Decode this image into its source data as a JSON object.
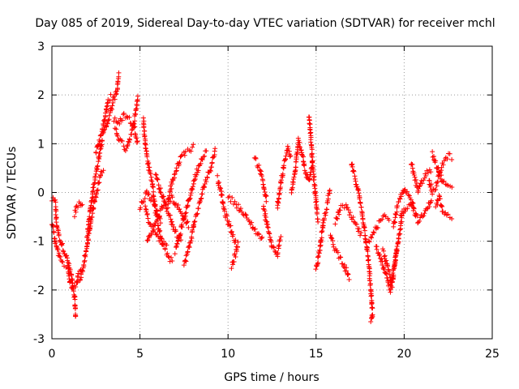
{
  "chart_data": {
    "type": "scatter",
    "title": "Day 085 of 2019, Sidereal Day-to-day VTEC variation (SDTVAR) for receiver mchl",
    "xlabel": "GPS time / hours",
    "ylabel": "SDTVAR / TECUs",
    "xlim": [
      0,
      25
    ],
    "ylim": [
      -3,
      3
    ],
    "x_ticks": [
      0,
      5,
      10,
      15,
      20,
      25
    ],
    "y_ticks": [
      -3,
      -2,
      -1,
      0,
      1,
      2,
      3
    ],
    "grid": true,
    "marker": "+",
    "series": [
      {
        "name": "SDTVAR",
        "color": "#ff0000",
        "tracks": [
          [
            [
              0.0,
              -0.15
            ],
            [
              0.2,
              -0.2
            ],
            [
              0.25,
              -0.6
            ],
            [
              0.4,
              -0.9
            ],
            [
              0.6,
              -1.1
            ],
            [
              0.9,
              -1.4
            ],
            [
              1.1,
              -1.7
            ],
            [
              1.3,
              -2.2
            ],
            [
              1.35,
              -2.6
            ]
          ],
          [
            [
              0.0,
              -0.6
            ],
            [
              0.2,
              -1.0
            ],
            [
              0.4,
              -1.3
            ],
            [
              0.6,
              -1.45
            ],
            [
              0.9,
              -1.5
            ],
            [
              1.0,
              -1.8
            ],
            [
              1.2,
              -2.0
            ],
            [
              1.4,
              -1.9
            ],
            [
              1.5,
              -1.7
            ],
            [
              1.7,
              -1.6
            ]
          ],
          [
            [
              1.3,
              -0.45
            ],
            [
              1.4,
              -0.3
            ],
            [
              1.6,
              -0.2
            ],
            [
              1.8,
              -0.25
            ]
          ],
          [
            [
              1.6,
              -1.8
            ],
            [
              1.8,
              -1.5
            ],
            [
              2.0,
              -1.1
            ],
            [
              2.2,
              -0.6
            ],
            [
              2.4,
              -0.2
            ],
            [
              2.6,
              0.1
            ],
            [
              2.8,
              0.4
            ],
            [
              3.0,
              0.5
            ]
          ],
          [
            [
              2.0,
              -0.9
            ],
            [
              2.2,
              -0.3
            ],
            [
              2.4,
              0.2
            ],
            [
              2.6,
              0.6
            ],
            [
              2.8,
              1.0
            ],
            [
              3.0,
              1.3
            ],
            [
              3.3,
              1.6
            ],
            [
              3.5,
              1.9
            ],
            [
              3.7,
              2.1
            ],
            [
              3.8,
              2.45
            ]
          ],
          [
            [
              2.5,
              0.8
            ],
            [
              2.8,
              1.2
            ],
            [
              3.0,
              1.5
            ],
            [
              3.2,
              1.9
            ],
            [
              3.4,
              2.0
            ]
          ],
          [
            [
              3.6,
              1.3
            ],
            [
              3.8,
              1.1
            ],
            [
              4.0,
              1.0
            ],
            [
              4.2,
              0.9
            ],
            [
              4.5,
              1.2
            ],
            [
              4.7,
              1.5
            ],
            [
              4.9,
              2.0
            ]
          ],
          [
            [
              3.5,
              1.5
            ],
            [
              3.8,
              1.4
            ],
            [
              4.1,
              1.6
            ],
            [
              4.4,
              1.5
            ],
            [
              4.7,
              1.3
            ],
            [
              4.9,
              1.0
            ]
          ],
          [
            [
              5.2,
              1.5
            ],
            [
              5.3,
              1.0
            ],
            [
              5.5,
              0.5
            ],
            [
              5.7,
              0.2
            ],
            [
              5.9,
              -0.4
            ],
            [
              6.1,
              -0.8
            ],
            [
              6.3,
              -1.1
            ],
            [
              6.6,
              -1.3
            ],
            [
              6.9,
              -1.45
            ]
          ],
          [
            [
              5.3,
              -0.3
            ],
            [
              5.5,
              -0.6
            ],
            [
              5.8,
              -0.8
            ],
            [
              6.2,
              -1.0
            ],
            [
              6.6,
              -1.1
            ]
          ],
          [
            [
              5.4,
              -1.0
            ],
            [
              5.8,
              -0.7
            ],
            [
              6.3,
              -0.3
            ],
            [
              6.8,
              -0.1
            ],
            [
              7.3,
              -0.4
            ],
            [
              7.8,
              -0.7
            ]
          ],
          [
            [
              6.6,
              -0.2
            ],
            [
              6.8,
              0.2
            ],
            [
              7.0,
              0.4
            ],
            [
              7.3,
              0.7
            ],
            [
              7.6,
              0.85
            ],
            [
              7.9,
              0.9
            ],
            [
              8.1,
              0.95
            ]
          ],
          [
            [
              5.9,
              0.4
            ],
            [
              6.1,
              0.1
            ],
            [
              6.4,
              -0.2
            ],
            [
              6.7,
              -0.5
            ],
            [
              7.0,
              -0.8
            ],
            [
              7.4,
              -1.0
            ]
          ],
          [
            [
              7.0,
              -1.2
            ],
            [
              7.3,
              -0.8
            ],
            [
              7.6,
              -0.4
            ],
            [
              7.9,
              0.0
            ],
            [
              8.2,
              0.4
            ],
            [
              8.5,
              0.7
            ],
            [
              8.8,
              0.9
            ]
          ],
          [
            [
              7.5,
              -1.5
            ],
            [
              7.8,
              -1.1
            ],
            [
              8.1,
              -0.6
            ],
            [
              8.4,
              -0.2
            ],
            [
              8.7,
              0.2
            ],
            [
              9.0,
              0.5
            ],
            [
              9.3,
              0.9
            ]
          ],
          [
            [
              5.0,
              -0.3
            ],
            [
              5.4,
              0.0
            ],
            [
              5.8,
              -0.2
            ],
            [
              6.2,
              -0.6
            ]
          ],
          [
            [
              9.4,
              0.3
            ],
            [
              9.6,
              0.0
            ],
            [
              9.8,
              -0.4
            ],
            [
              10.0,
              -0.6
            ],
            [
              10.3,
              -0.9
            ],
            [
              10.5,
              -1.1
            ]
          ],
          [
            [
              10.0,
              -0.1
            ],
            [
              10.4,
              -0.2
            ],
            [
              10.8,
              -0.4
            ],
            [
              11.2,
              -0.6
            ],
            [
              11.6,
              -0.8
            ],
            [
              12.0,
              -1.0
            ]
          ],
          [
            [
              10.2,
              -1.5
            ],
            [
              10.4,
              -1.3
            ],
            [
              10.6,
              -1.0
            ]
          ],
          [
            [
              11.5,
              0.7
            ],
            [
              11.8,
              0.5
            ],
            [
              12.0,
              0.2
            ],
            [
              12.2,
              -0.2
            ]
          ],
          [
            [
              12.0,
              -0.3
            ],
            [
              12.3,
              -0.8
            ],
            [
              12.5,
              -1.1
            ],
            [
              12.8,
              -1.3
            ],
            [
              13.0,
              -0.9
            ]
          ],
          [
            [
              12.8,
              -0.3
            ],
            [
              13.0,
              0.2
            ],
            [
              13.2,
              0.6
            ],
            [
              13.4,
              0.9
            ],
            [
              13.6,
              0.7
            ]
          ],
          [
            [
              13.6,
              0.0
            ],
            [
              13.8,
              0.4
            ],
            [
              14.0,
              1.1
            ],
            [
              14.2,
              0.8
            ],
            [
              14.4,
              0.4
            ],
            [
              14.6,
              0.2
            ],
            [
              14.8,
              0.6
            ]
          ],
          [
            [
              14.6,
              1.6
            ],
            [
              14.7,
              1.1
            ],
            [
              14.8,
              0.6
            ],
            [
              14.9,
              0.2
            ],
            [
              15.0,
              -0.2
            ],
            [
              15.1,
              -0.6
            ]
          ],
          [
            [
              15.0,
              -1.6
            ],
            [
              15.2,
              -1.2
            ],
            [
              15.4,
              -0.6
            ],
            [
              15.6,
              -0.3
            ],
            [
              15.8,
              0.1
            ]
          ],
          [
            [
              15.8,
              -0.9
            ],
            [
              16.0,
              -1.1
            ],
            [
              16.3,
              -1.3
            ],
            [
              16.6,
              -1.5
            ],
            [
              16.9,
              -1.8
            ]
          ],
          [
            [
              16.1,
              -0.6
            ],
            [
              16.4,
              -0.3
            ],
            [
              16.7,
              -0.3
            ],
            [
              17.0,
              -0.5
            ],
            [
              17.3,
              -0.7
            ],
            [
              17.6,
              -0.9
            ]
          ],
          [
            [
              17.0,
              0.6
            ],
            [
              17.2,
              0.3
            ],
            [
              17.4,
              0.0
            ],
            [
              17.6,
              -0.4
            ],
            [
              17.8,
              -0.9
            ],
            [
              18.0,
              -1.5
            ],
            [
              18.1,
              -2.0
            ],
            [
              18.2,
              -2.5
            ],
            [
              18.1,
              -2.7
            ]
          ],
          [
            [
              18.0,
              -1.0
            ],
            [
              18.3,
              -0.8
            ],
            [
              18.6,
              -0.6
            ],
            [
              18.9,
              -0.5
            ],
            [
              19.2,
              -0.6
            ]
          ],
          [
            [
              18.4,
              -1.1
            ],
            [
              18.7,
              -1.4
            ],
            [
              19.0,
              -1.7
            ],
            [
              19.2,
              -2.0
            ],
            [
              19.4,
              -1.6
            ],
            [
              19.6,
              -1.1
            ]
          ],
          [
            [
              18.8,
              -1.2
            ],
            [
              19.1,
              -1.6
            ],
            [
              19.3,
              -1.9
            ],
            [
              19.5,
              -1.4
            ],
            [
              19.7,
              -0.9
            ],
            [
              19.9,
              -0.4
            ]
          ],
          [
            [
              19.4,
              -0.7
            ],
            [
              19.6,
              -0.3
            ],
            [
              19.8,
              -0.1
            ],
            [
              20.0,
              0.05
            ],
            [
              20.3,
              -0.1
            ],
            [
              20.6,
              -0.3
            ]
          ],
          [
            [
              19.8,
              -0.5
            ],
            [
              20.1,
              -0.3
            ],
            [
              20.4,
              -0.2
            ],
            [
              20.8,
              -0.6
            ],
            [
              21.2,
              -0.4
            ],
            [
              21.6,
              -0.1
            ]
          ],
          [
            [
              20.4,
              0.6
            ],
            [
              20.6,
              0.3
            ],
            [
              20.8,
              0.0
            ],
            [
              21.0,
              0.2
            ],
            [
              21.3,
              0.4
            ],
            [
              21.6,
              0.5
            ]
          ],
          [
            [
              21.4,
              0.3
            ],
            [
              21.6,
              0.0
            ],
            [
              21.8,
              0.1
            ],
            [
              22.0,
              0.4
            ],
            [
              22.2,
              0.6
            ],
            [
              22.5,
              0.75
            ],
            [
              22.8,
              0.72
            ]
          ],
          [
            [
              21.8,
              -0.3
            ],
            [
              22.0,
              -0.1
            ],
            [
              22.2,
              -0.4
            ],
            [
              22.5,
              -0.5
            ],
            [
              22.8,
              -0.5
            ]
          ],
          [
            [
              21.6,
              0.8
            ],
            [
              21.9,
              0.5
            ],
            [
              22.2,
              0.2
            ],
            [
              22.5,
              0.1
            ],
            [
              22.8,
              0.05
            ]
          ]
        ]
      }
    ]
  }
}
